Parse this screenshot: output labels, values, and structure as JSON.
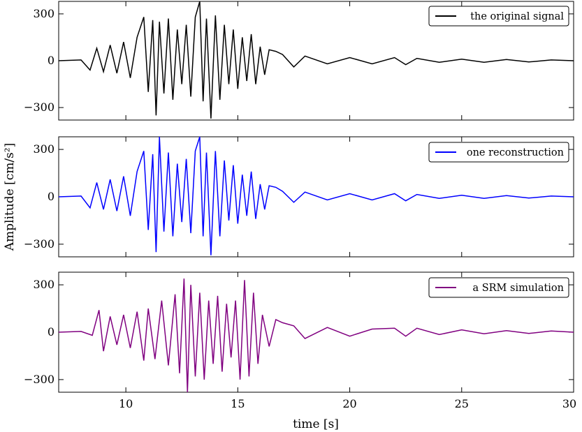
{
  "figure": {
    "ylabel": "Amplitude [cm/s²]",
    "xlabel": "time [s]",
    "x_ticks": [
      "10",
      "15",
      "20",
      "25",
      "30"
    ],
    "y_ticks": [
      "300",
      "0",
      "−300"
    ]
  },
  "chart_data": [
    {
      "type": "line",
      "legend": "the original signal",
      "color": "#000000",
      "xlim": [
        7,
        30
      ],
      "ylim": [
        -380,
        380
      ],
      "x": [
        7.0,
        8.0,
        8.4,
        8.7,
        9.0,
        9.3,
        9.6,
        9.9,
        10.2,
        10.5,
        10.8,
        11.0,
        11.2,
        11.35,
        11.5,
        11.7,
        11.9,
        12.1,
        12.3,
        12.5,
        12.7,
        12.9,
        13.1,
        13.3,
        13.45,
        13.6,
        13.8,
        14.0,
        14.2,
        14.4,
        14.6,
        14.8,
        15.0,
        15.2,
        15.4,
        15.6,
        15.8,
        16.0,
        16.2,
        16.4,
        16.7,
        17.0,
        17.5,
        18.0,
        19.0,
        20.0,
        21.0,
        22.0,
        22.5,
        23.0,
        24.0,
        25.0,
        26.0,
        27.0,
        28.0,
        29.0,
        30.0
      ],
      "y": [
        0,
        5,
        -60,
        80,
        -70,
        100,
        -80,
        120,
        -110,
        150,
        280,
        -200,
        260,
        -350,
        250,
        -210,
        270,
        -250,
        200,
        -150,
        230,
        -230,
        280,
        380,
        -260,
        270,
        -370,
        290,
        -250,
        230,
        -150,
        200,
        -180,
        150,
        -130,
        170,
        -150,
        90,
        -90,
        70,
        60,
        40,
        -40,
        30,
        -20,
        20,
        -20,
        20,
        -25,
        15,
        -10,
        10,
        -10,
        8,
        -8,
        5,
        0
      ]
    },
    {
      "type": "line",
      "legend": "one reconstruction",
      "color": "#0000ff",
      "xlim": [
        7,
        30
      ],
      "ylim": [
        -380,
        380
      ],
      "x": [
        7.0,
        8.0,
        8.4,
        8.7,
        9.0,
        9.3,
        9.6,
        9.9,
        10.2,
        10.5,
        10.8,
        11.0,
        11.2,
        11.35,
        11.5,
        11.7,
        11.9,
        12.1,
        12.3,
        12.5,
        12.7,
        12.9,
        13.1,
        13.3,
        13.45,
        13.6,
        13.8,
        14.0,
        14.2,
        14.4,
        14.6,
        14.8,
        15.0,
        15.2,
        15.4,
        15.6,
        15.8,
        16.0,
        16.2,
        16.4,
        16.7,
        17.0,
        17.5,
        18.0,
        19.0,
        20.0,
        21.0,
        22.0,
        22.5,
        23.0,
        24.0,
        25.0,
        26.0,
        27.0,
        28.0,
        29.0,
        30.0
      ],
      "y": [
        0,
        5,
        -70,
        90,
        -80,
        110,
        -90,
        130,
        -120,
        160,
        290,
        -210,
        270,
        -350,
        380,
        -220,
        280,
        -250,
        210,
        -160,
        240,
        -230,
        290,
        380,
        -250,
        280,
        -370,
        290,
        -250,
        230,
        -150,
        200,
        -170,
        140,
        -120,
        160,
        -140,
        80,
        -80,
        70,
        60,
        35,
        -35,
        30,
        -20,
        20,
        -20,
        20,
        -25,
        15,
        -10,
        10,
        -10,
        8,
        -8,
        5,
        0
      ]
    },
    {
      "type": "line",
      "legend": "a SRM simulation",
      "color": "#800080",
      "xlim": [
        7,
        30
      ],
      "ylim": [
        -380,
        380
      ],
      "x": [
        7.0,
        8.0,
        8.5,
        8.8,
        9.0,
        9.3,
        9.6,
        9.9,
        10.2,
        10.5,
        10.8,
        11.0,
        11.3,
        11.6,
        11.9,
        12.2,
        12.4,
        12.6,
        12.75,
        12.9,
        13.1,
        13.3,
        13.5,
        13.7,
        13.9,
        14.1,
        14.3,
        14.5,
        14.7,
        14.9,
        15.1,
        15.3,
        15.5,
        15.7,
        15.9,
        16.1,
        16.4,
        16.7,
        17.0,
        17.5,
        18.0,
        19.0,
        20.0,
        21.0,
        22.0,
        22.5,
        23.0,
        24.0,
        25.0,
        26.0,
        27.0,
        28.0,
        29.0,
        30.0
      ],
      "y": [
        0,
        5,
        -20,
        140,
        -120,
        100,
        -80,
        110,
        -100,
        130,
        -180,
        150,
        -170,
        200,
        -210,
        240,
        -260,
        340,
        -380,
        300,
        -280,
        250,
        -300,
        200,
        -200,
        230,
        -250,
        180,
        -160,
        200,
        -300,
        330,
        -280,
        250,
        -200,
        110,
        -90,
        80,
        60,
        40,
        -40,
        30,
        -25,
        20,
        25,
        -25,
        25,
        -15,
        15,
        -10,
        10,
        -8,
        8,
        0
      ]
    }
  ]
}
